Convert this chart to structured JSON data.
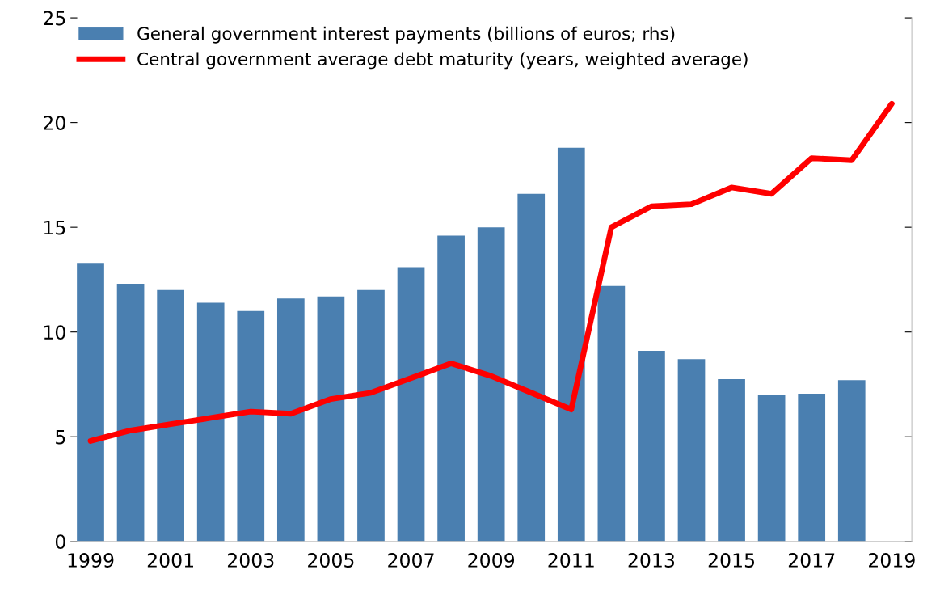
{
  "chart_data": {
    "type": "bar",
    "categories": [
      "1999",
      null,
      "2001",
      null,
      "2003",
      null,
      "2005",
      null,
      "2007",
      null,
      "2009",
      null,
      "2011",
      null,
      "2013",
      null,
      "2015",
      null,
      "2017",
      null,
      "2019"
    ],
    "series": [
      {
        "name": "General government interest payments (billions of euros; rhs)",
        "color": "#4a7fb0",
        "values": [
          13.3,
          12.3,
          12.0,
          11.4,
          11.0,
          11.6,
          11.7,
          12.0,
          13.1,
          14.6,
          15.0,
          16.6,
          18.8,
          12.2,
          9.1,
          8.7,
          7.75,
          7.0,
          7.05,
          7.7,
          null
        ]
      },
      {
        "name": "Central government average debt maturity (years, weighted average)",
        "type": "line",
        "color": "#ff0000",
        "values": [
          4.8,
          5.3,
          5.6,
          5.9,
          6.2,
          6.1,
          6.8,
          7.1,
          7.8,
          8.5,
          7.9,
          7.1,
          6.3,
          15.0,
          16.0,
          16.1,
          16.9,
          16.6,
          18.3,
          18.2,
          20.9
        ]
      }
    ],
    "ylim": [
      0,
      25
    ],
    "yticks": [
      0,
      5,
      10,
      15,
      20,
      25
    ],
    "grid": false,
    "legend": "top left",
    "marker": "none",
    "line_style": "solid"
  }
}
